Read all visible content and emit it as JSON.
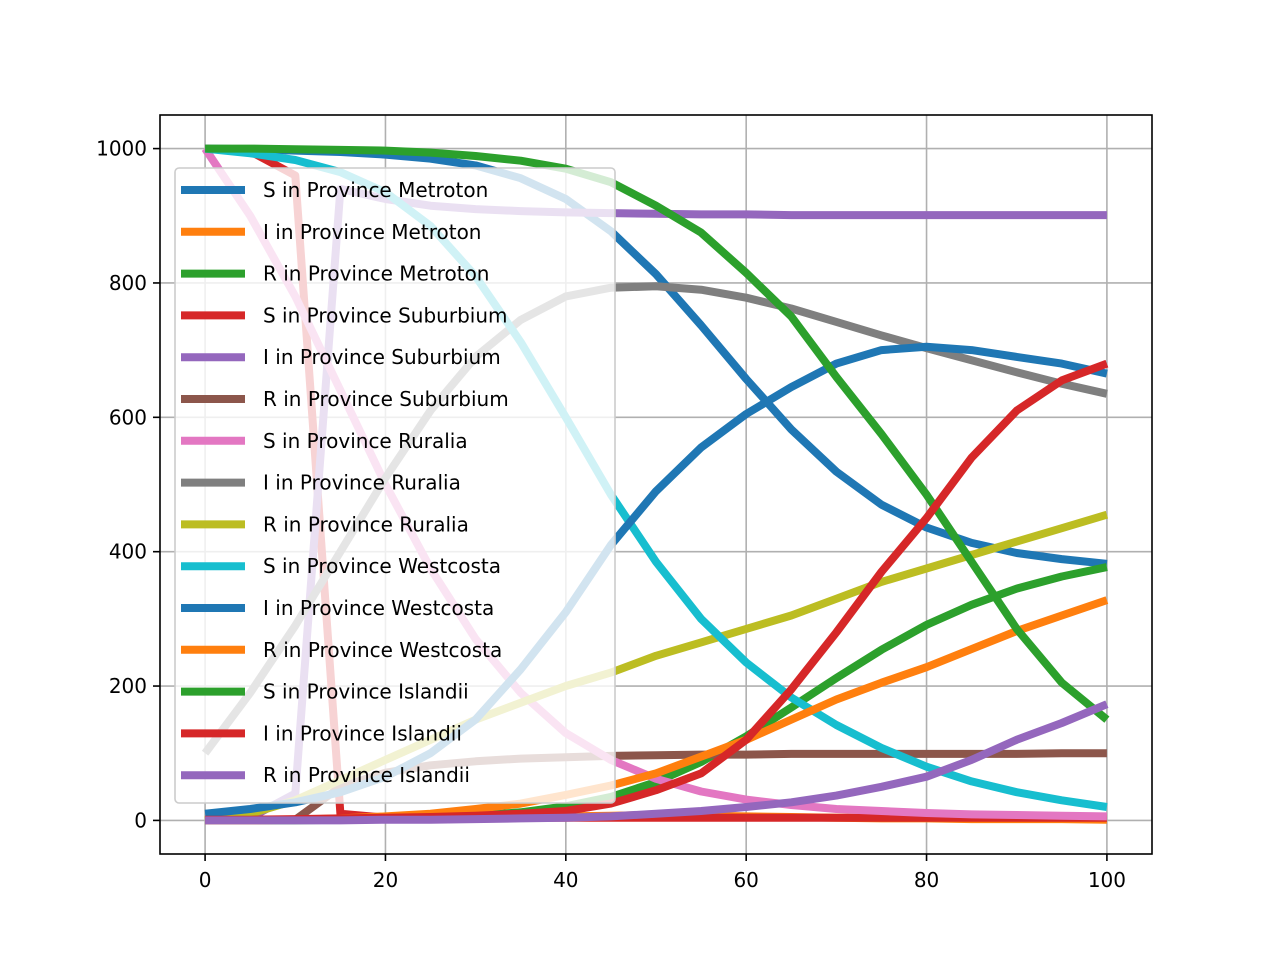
{
  "chart_data": {
    "type": "line",
    "title": "",
    "xlabel": "",
    "ylabel": "",
    "xlim": [
      -5,
      105
    ],
    "ylim": [
      -50,
      1050
    ],
    "xticks": [
      0,
      20,
      40,
      60,
      80,
      100
    ],
    "yticks": [
      0,
      200,
      400,
      600,
      800,
      1000
    ],
    "grid": true,
    "legend_position": "upper-left",
    "x": [
      0,
      5,
      10,
      15,
      20,
      25,
      30,
      35,
      40,
      45,
      50,
      55,
      60,
      65,
      70,
      75,
      80,
      85,
      90,
      95,
      100
    ],
    "series": [
      {
        "name": "S in Province Metroton",
        "color": "#1f77b4",
        "values": [
          1000,
          999,
          997,
          995,
          991,
          985,
          975,
          956,
          925,
          877,
          813,
          737,
          657,
          582,
          519,
          470,
          436,
          413,
          398,
          389,
          382
        ]
      },
      {
        "name": "I in Province Metroton",
        "color": "#ff7f0e",
        "values": [
          0,
          0,
          1,
          1,
          2,
          2,
          3,
          5,
          6,
          7,
          8,
          7,
          6,
          5,
          4,
          3,
          3,
          2,
          2,
          2,
          1
        ]
      },
      {
        "name": "R in Province Metroton",
        "color": "#2ca02c",
        "values": [
          0,
          0,
          0,
          1,
          2,
          4,
          7,
          12,
          21,
          35,
          57,
          87,
          125,
          168,
          212,
          254,
          291,
          321,
          345,
          363,
          377
        ]
      },
      {
        "name": "S in Province Suburbium",
        "color": "#d62728",
        "values": [
          1000,
          996,
          960,
          10,
          4,
          4,
          4,
          4,
          4,
          4,
          4,
          4,
          4,
          4,
          4,
          4,
          4,
          4,
          4,
          4,
          4
        ]
      },
      {
        "name": "I in Province Suburbium",
        "color": "#9467bd",
        "values": [
          0,
          4,
          40,
          940,
          925,
          915,
          910,
          907,
          905,
          904,
          903,
          902,
          902,
          901,
          901,
          901,
          901,
          901,
          901,
          901,
          901
        ]
      },
      {
        "name": "R in Province Suburbium",
        "color": "#8c564b",
        "values": [
          0,
          0,
          1,
          50,
          71,
          82,
          88,
          92,
          94,
          96,
          97,
          98,
          98,
          99,
          99,
          99,
          99,
          99,
          99,
          100,
          100
        ]
      },
      {
        "name": "S in Province Ruralia",
        "color": "#e377c2",
        "values": [
          1000,
          900,
          780,
          640,
          500,
          375,
          270,
          190,
          130,
          90,
          62,
          43,
          31,
          23,
          17,
          14,
          11,
          9,
          8,
          7,
          6
        ]
      },
      {
        "name": "I in Province Ruralia",
        "color": "#7f7f7f",
        "values": [
          100,
          190,
          290,
          400,
          510,
          610,
          690,
          745,
          780,
          793,
          795,
          790,
          778,
          762,
          742,
          722,
          703,
          685,
          667,
          650,
          635
        ]
      },
      {
        "name": "R in Province Ruralia",
        "color": "#bcbd22",
        "values": [
          0,
          10,
          30,
          60,
          90,
          120,
          150,
          175,
          200,
          220,
          245,
          265,
          285,
          305,
          330,
          355,
          375,
          395,
          415,
          435,
          455
        ]
      },
      {
        "name": "S in Province Westcosta",
        "color": "#17becf",
        "values": [
          1000,
          993,
          983,
          965,
          935,
          885,
          810,
          712,
          600,
          485,
          385,
          300,
          235,
          183,
          142,
          108,
          80,
          58,
          42,
          30,
          20
        ]
      },
      {
        "name": "I in Province Westcosta",
        "color": "#1f77b4",
        "values": [
          10,
          17,
          27,
          42,
          65,
          100,
          150,
          225,
          310,
          410,
          490,
          555,
          605,
          645,
          680,
          700,
          705,
          700,
          690,
          680,
          665
        ]
      },
      {
        "name": "R in Province Westcosta",
        "color": "#ff7f0e",
        "values": [
          0,
          0,
          1,
          3,
          6,
          10,
          17,
          25,
          38,
          52,
          70,
          95,
          120,
          150,
          180,
          205,
          228,
          255,
          282,
          305,
          328
        ]
      },
      {
        "name": "S in Province Islandii",
        "color": "#2ca02c",
        "values": [
          1000,
          1000,
          999,
          998,
          997,
          994,
          989,
          982,
          970,
          950,
          915,
          875,
          815,
          750,
          660,
          575,
          485,
          385,
          285,
          205,
          150
        ]
      },
      {
        "name": "I in Province Islandii",
        "color": "#d62728",
        "values": [
          1,
          1,
          2,
          3,
          4,
          5,
          7,
          10,
          14,
          25,
          45,
          70,
          120,
          195,
          280,
          370,
          450,
          540,
          610,
          655,
          680
        ]
      },
      {
        "name": "R in Province Islandii",
        "color": "#9467bd",
        "values": [
          0,
          0,
          0,
          0,
          1,
          1,
          2,
          3,
          4,
          6,
          10,
          14,
          20,
          27,
          37,
          50,
          65,
          90,
          120,
          145,
          173
        ]
      }
    ]
  }
}
